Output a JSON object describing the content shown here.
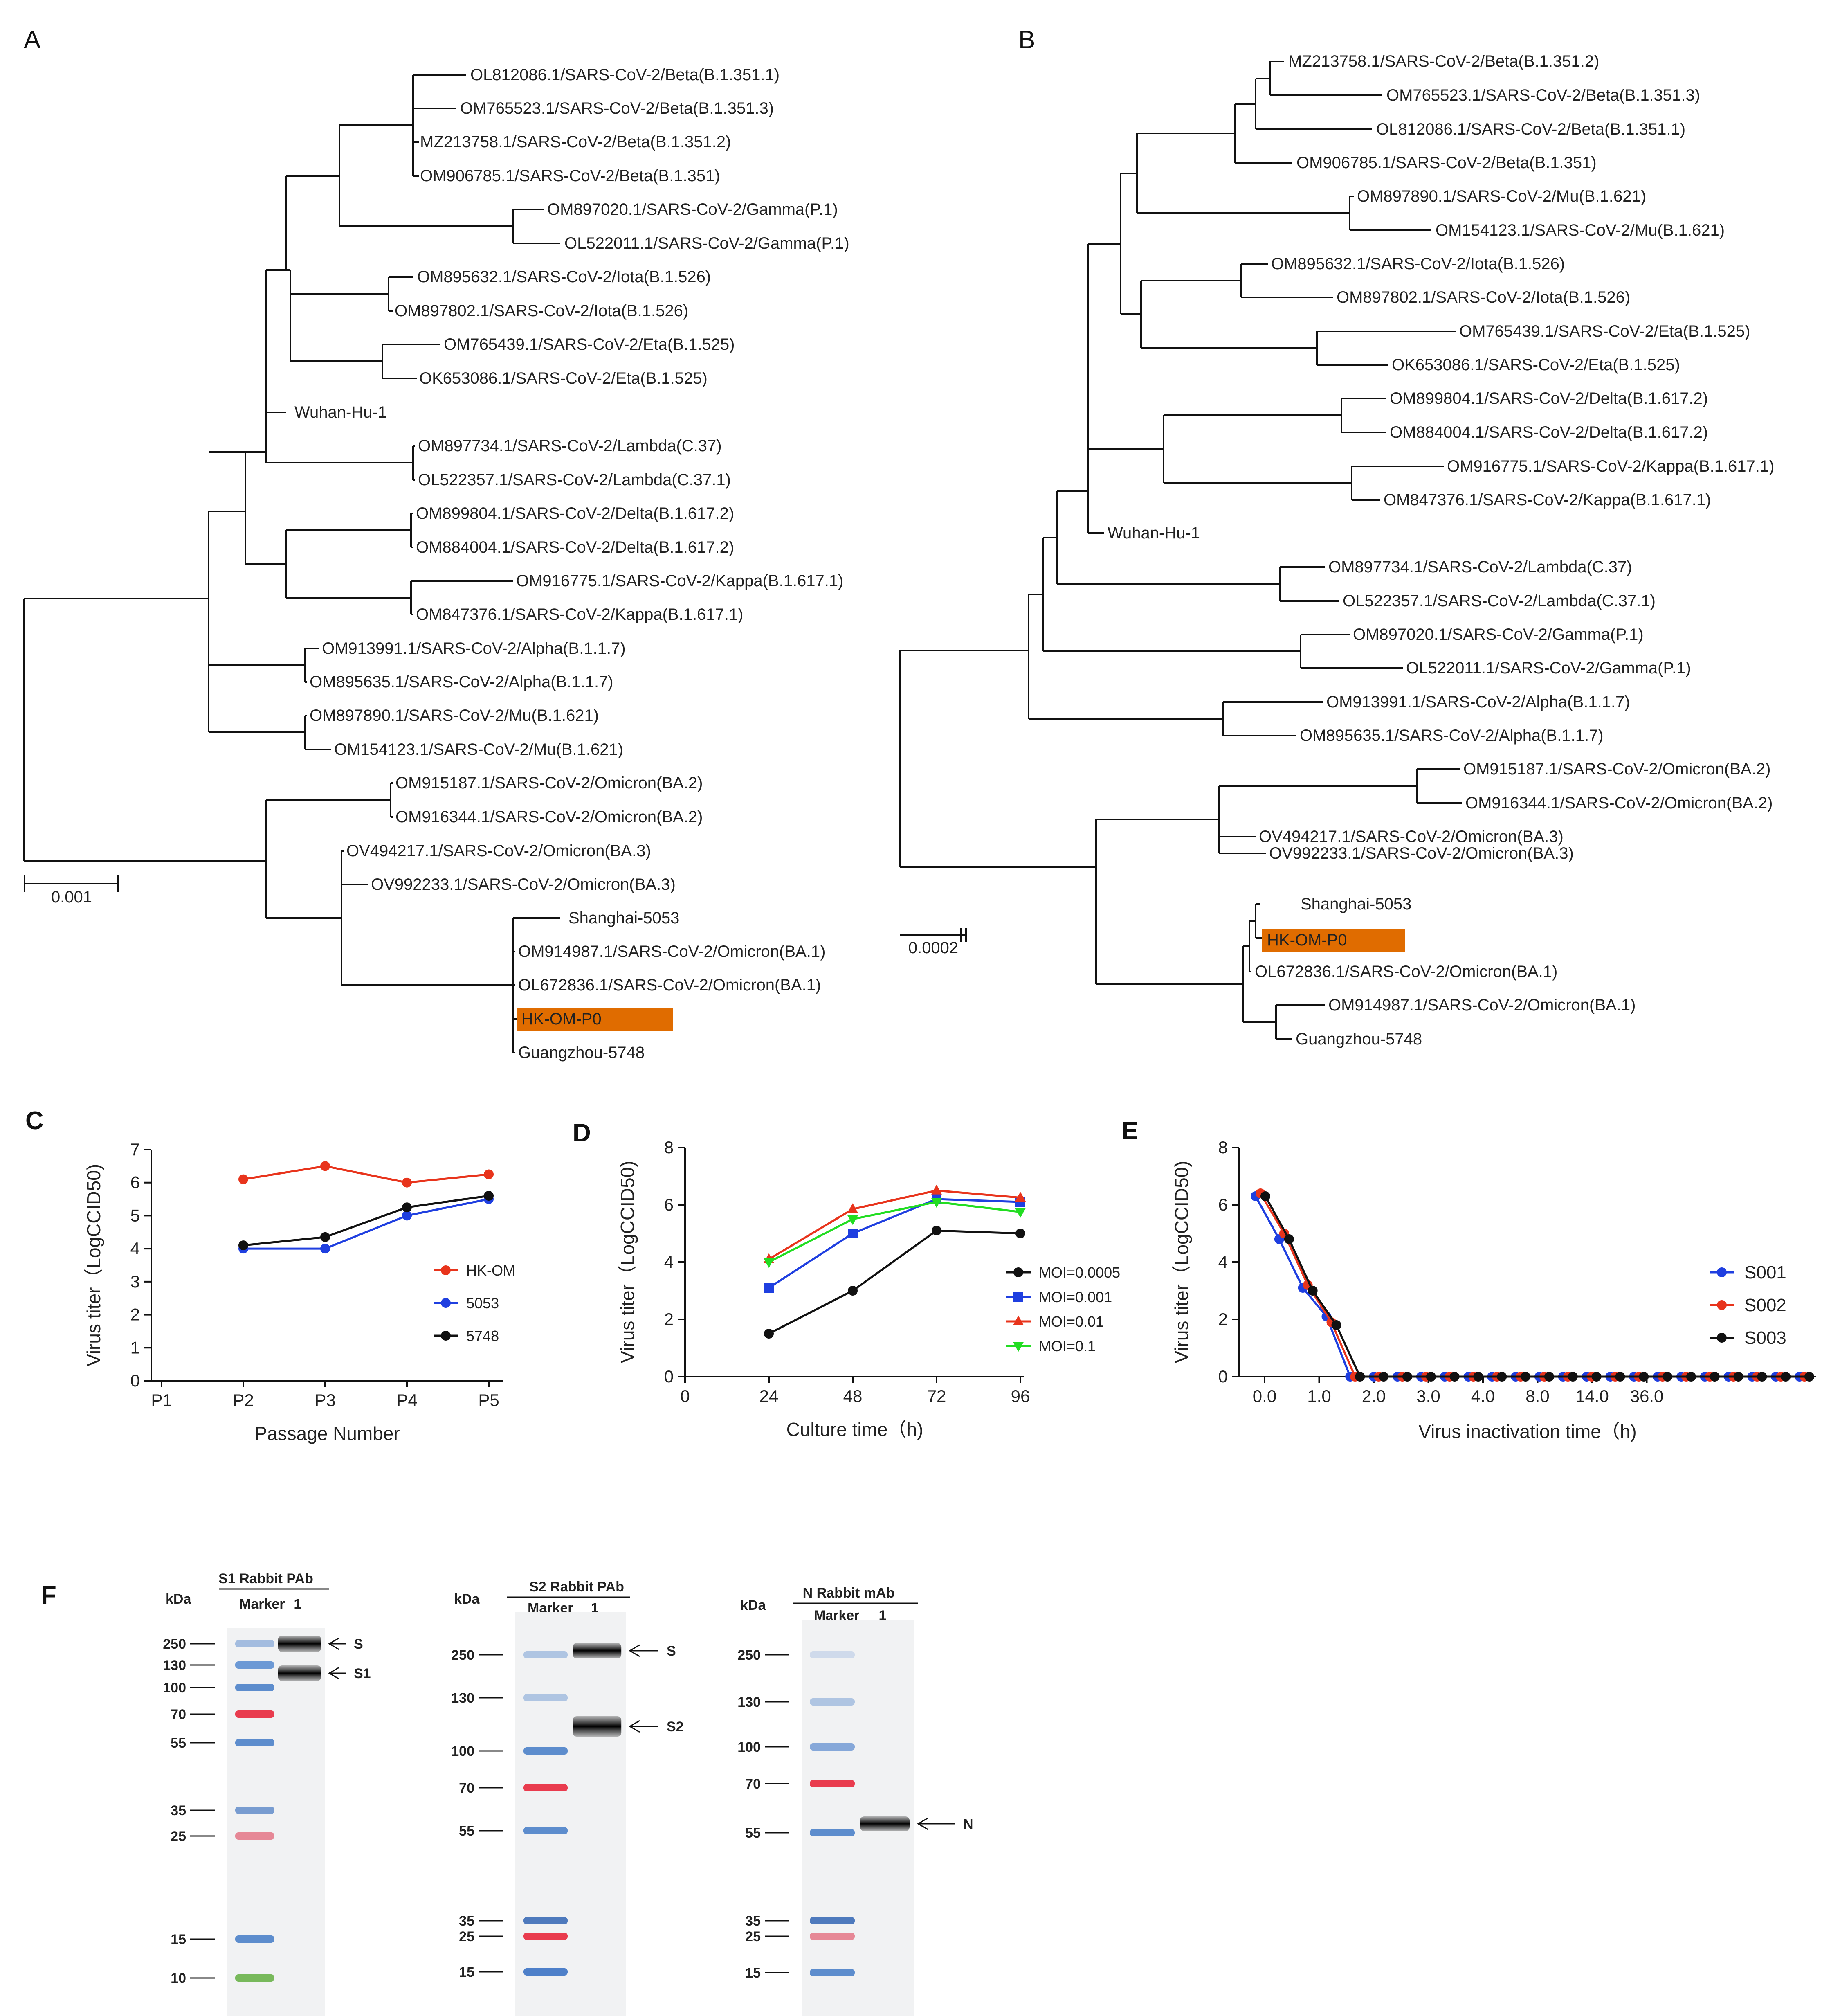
{
  "panels": {
    "A": "A",
    "B": "B",
    "C": "C",
    "D": "D",
    "E": "E",
    "F": "F"
  },
  "treeA": {
    "scale_label": "0.001",
    "highlight_color": "#e06c00",
    "tips": [
      "OL812086.1/SARS-CoV-2/Beta(B.1.351.1)",
      "OM765523.1/SARS-CoV-2/Beta(B.1.351.3)",
      "MZ213758.1/SARS-CoV-2/Beta(B.1.351.2)",
      "OM906785.1/SARS-CoV-2/Beta(B.1.351)",
      "OM897020.1/SARS-CoV-2/Gamma(P.1)",
      "OL522011.1/SARS-CoV-2/Gamma(P.1)",
      "OM895632.1/SARS-CoV-2/Iota(B.1.526)",
      "OM897802.1/SARS-CoV-2/Iota(B.1.526)",
      "OM765439.1/SARS-CoV-2/Eta(B.1.525)",
      "OK653086.1/SARS-CoV-2/Eta(B.1.525)",
      "Wuhan-Hu-1",
      "OM897734.1/SARS-CoV-2/Lambda(C.37)",
      "OL522357.1/SARS-CoV-2/Lambda(C.37.1)",
      "OM899804.1/SARS-CoV-2/Delta(B.1.617.2)",
      "OM884004.1/SARS-CoV-2/Delta(B.1.617.2)",
      "OM916775.1/SARS-CoV-2/Kappa(B.1.617.1)",
      "OM847376.1/SARS-CoV-2/Kappa(B.1.617.1)",
      "OM913991.1/SARS-CoV-2/Alpha(B.1.1.7)",
      "OM895635.1/SARS-CoV-2/Alpha(B.1.1.7)",
      "OM897890.1/SARS-CoV-2/Mu(B.1.621)",
      "OM154123.1/SARS-CoV-2/Mu(B.1.621)",
      "OM915187.1/SARS-CoV-2/Omicron(BA.2)",
      "OM916344.1/SARS-CoV-2/Omicron(BA.2)",
      "OV494217.1/SARS-CoV-2/Omicron(BA.3)",
      "OV992233.1/SARS-CoV-2/Omicron(BA.3)",
      "Shanghai-5053",
      "OM914987.1/SARS-CoV-2/Omicron(BA.1)",
      "OL672836.1/SARS-CoV-2/Omicron(BA.1)",
      "HK-OM-P0",
      "Guangzhou-5748"
    ]
  },
  "treeB": {
    "scale_label": "0.0002",
    "tips": [
      "MZ213758.1/SARS-CoV-2/Beta(B.1.351.2)",
      "OM765523.1/SARS-CoV-2/Beta(B.1.351.3)",
      "OL812086.1/SARS-CoV-2/Beta(B.1.351.1)",
      "OM906785.1/SARS-CoV-2/Beta(B.1.351)",
      "OM897890.1/SARS-CoV-2/Mu(B.1.621)",
      "OM154123.1/SARS-CoV-2/Mu(B.1.621)",
      "OM895632.1/SARS-CoV-2/Iota(B.1.526)",
      "OM897802.1/SARS-CoV-2/Iota(B.1.526)",
      "OM765439.1/SARS-CoV-2/Eta(B.1.525)",
      "OK653086.1/SARS-CoV-2/Eta(B.1.525)",
      "OM899804.1/SARS-CoV-2/Delta(B.1.617.2)",
      "OM884004.1/SARS-CoV-2/Delta(B.1.617.2)",
      "OM916775.1/SARS-CoV-2/Kappa(B.1.617.1)",
      "OM847376.1/SARS-CoV-2/Kappa(B.1.617.1)",
      "Wuhan-Hu-1",
      "OM897734.1/SARS-CoV-2/Lambda(C.37)",
      "OL522357.1/SARS-CoV-2/Lambda(C.37.1)",
      "OM897020.1/SARS-CoV-2/Gamma(P.1)",
      "OL522011.1/SARS-CoV-2/Gamma(P.1)",
      "OM913991.1/SARS-CoV-2/Alpha(B.1.1.7)",
      "OM895635.1/SARS-CoV-2/Alpha(B.1.1.7)",
      "OM915187.1/SARS-CoV-2/Omicron(BA.2)",
      "OM916344.1/SARS-CoV-2/Omicron(BA.2)",
      "OV494217.1/SARS-CoV-2/Omicron(BA.3)",
      "OV992233.1/SARS-CoV-2/Omicron(BA.3)",
      "Shanghai-5053",
      "HK-OM-P0",
      "OL672836.1/SARS-CoV-2/Omicron(BA.1)",
      "OM914987.1/SARS-CoV-2/Omicron(BA.1)",
      "Guangzhou-5748"
    ]
  },
  "chart_data": [
    {
      "id": "C",
      "type": "line",
      "xlabel": "Passage Number",
      "ylabel": "Virus titer（LogCCID50)",
      "categories": [
        "P1",
        "P2",
        "P3",
        "P4",
        "P5"
      ],
      "ylim": [
        0,
        7
      ],
      "yticks": [
        0,
        1,
        2,
        3,
        4,
        5,
        6,
        7
      ],
      "series": [
        {
          "name": "HK-OM",
          "color": "#e8341c",
          "values": [
            null,
            6.1,
            6.5,
            6.0,
            6.25
          ]
        },
        {
          "name": "5053",
          "color": "#1f3fe0",
          "values": [
            null,
            4.0,
            4.0,
            5.0,
            5.5
          ]
        },
        {
          "name": "5748",
          "color": "#111111",
          "values": [
            null,
            4.1,
            4.35,
            5.25,
            5.6
          ]
        }
      ]
    },
    {
      "id": "D",
      "type": "line",
      "xlabel": "Culture time（h)",
      "ylabel": "Virus titer（LogCCID50)",
      "x": [
        24,
        48,
        72,
        96
      ],
      "xticks": [
        0,
        24,
        48,
        72,
        96
      ],
      "xlim": [
        0,
        96
      ],
      "ylim": [
        0,
        8
      ],
      "yticks": [
        0,
        2,
        4,
        6,
        8
      ],
      "series": [
        {
          "name": "MOI=0.0005",
          "color": "#111111",
          "marker": "circle",
          "values": [
            1.5,
            3.0,
            5.1,
            5.0
          ]
        },
        {
          "name": "MOI=0.001",
          "color": "#1f3fe0",
          "marker": "square",
          "values": [
            3.1,
            5.0,
            6.2,
            6.1
          ]
        },
        {
          "name": "MOI=0.01",
          "color": "#e8341c",
          "marker": "triangle",
          "values": [
            4.1,
            5.85,
            6.5,
            6.25
          ]
        },
        {
          "name": "MOI=0.1",
          "color": "#22dd22",
          "marker": "triangle-down",
          "values": [
            4.0,
            5.5,
            6.1,
            5.75
          ]
        }
      ]
    },
    {
      "id": "E",
      "type": "line",
      "xlabel": "Virus inactivation time（h)",
      "ylabel": "Virus titer（LogCCID50)",
      "xticks": [
        "0.0",
        "1.0",
        "2.0",
        "3.0",
        "4.0",
        "8.0",
        "14.0",
        "36.0"
      ],
      "ylim": [
        0,
        8
      ],
      "yticks": [
        0,
        2,
        4,
        6,
        8
      ],
      "series": [
        {
          "name": "S001",
          "color": "#1f3fe0",
          "values": [
            6.3,
            4.8,
            3.1,
            2.1,
            0,
            0,
            0,
            0,
            0,
            0,
            0,
            0,
            0,
            0,
            0,
            0,
            0,
            0,
            0,
            0,
            0,
            0,
            0,
            0
          ]
        },
        {
          "name": "S002",
          "color": "#e8341c",
          "values": [
            6.4,
            5.0,
            3.2,
            1.9,
            0,
            0,
            0,
            0,
            0,
            0,
            0,
            0,
            0,
            0,
            0,
            0,
            0,
            0,
            0,
            0,
            0,
            0,
            0,
            0
          ]
        },
        {
          "name": "S003",
          "color": "#111111",
          "values": [
            6.3,
            4.8,
            3.0,
            1.8,
            0,
            0,
            0,
            0,
            0,
            0,
            0,
            0,
            0,
            0,
            0,
            0,
            0,
            0,
            0,
            0,
            0,
            0,
            0,
            0
          ]
        }
      ]
    }
  ],
  "blots": [
    {
      "title": "S1 Rabbit PAb",
      "kda": "kDa",
      "lane_marker": "Marker",
      "lane_1": "1",
      "markers": [
        "250",
        "130",
        "100",
        "70",
        "55",
        "35",
        "25",
        "15",
        "10"
      ],
      "bands": [
        "S",
        "S1"
      ]
    },
    {
      "title": "S2 Rabbit PAb",
      "kda": "kDa",
      "lane_marker": "Marker",
      "lane_1": "1",
      "markers": [
        "250",
        "130",
        "100",
        "70",
        "55",
        "35",
        "25",
        "15"
      ],
      "bands": [
        "S",
        "S2"
      ]
    },
    {
      "title": "N Rabbit mAb",
      "kda": "kDa",
      "lane_marker": "Marker",
      "lane_1": "1",
      "markers": [
        "250",
        "130",
        "100",
        "70",
        "55",
        "35",
        "25",
        "15"
      ],
      "bands": [
        "N"
      ]
    }
  ]
}
